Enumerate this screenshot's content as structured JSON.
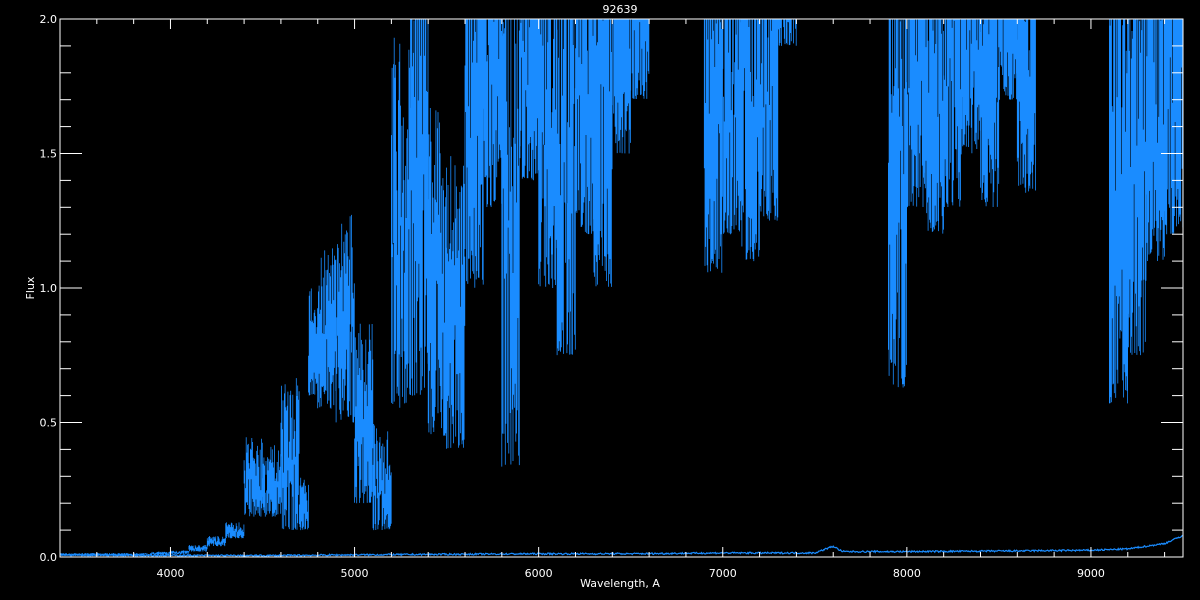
{
  "chart_data": {
    "type": "line",
    "title": "92639",
    "xlabel": "Wavelength, A",
    "ylabel": "Flux",
    "xlim": [
      3400,
      9500
    ],
    "ylim": [
      0.0,
      2.0
    ],
    "xticks": [
      4000,
      5000,
      6000,
      7000,
      8000,
      9000
    ],
    "xtick_labels": [
      "4000",
      "5000",
      "6000",
      "7000",
      "8000",
      "9000"
    ],
    "yticks": [
      0.0,
      0.5,
      1.0,
      1.5,
      2.0
    ],
    "ytick_labels": [
      "0.0",
      "0.5",
      "1.0",
      "1.5",
      "2.0"
    ],
    "grid": false,
    "colors": {
      "background": "#000000",
      "axes": "#ffffff",
      "flux": "#1a8cff",
      "error": "#1a8cff"
    },
    "series": [
      {
        "kind": "flux-envelope",
        "x_bin_start": [
          3400,
          3500,
          3600,
          3700,
          3800,
          3900,
          4000,
          4100,
          4200,
          4300,
          4400,
          4500,
          4600,
          4700,
          4750,
          4800,
          4900,
          5000,
          5100,
          5200,
          5300,
          5400,
          5500,
          5600,
          5700,
          5800,
          5900,
          6000,
          6100,
          6200,
          6300,
          6400,
          6500,
          6600,
          6700,
          6800,
          6900,
          7000,
          7100,
          7200,
          7300,
          7400,
          7500,
          7600,
          7700,
          7800,
          7900,
          8000,
          8100,
          8200,
          8300,
          8400,
          8500,
          8600,
          8700,
          8800,
          8900,
          9000,
          9100,
          9200,
          9300,
          9400
        ],
        "lower": [
          0.005,
          0.005,
          0.005,
          0.005,
          0.006,
          0.008,
          0.01,
          0.02,
          0.04,
          0.07,
          0.15,
          0.15,
          0.1,
          0.1,
          0.6,
          0.55,
          0.5,
          0.2,
          0.1,
          0.55,
          0.6,
          0.45,
          0.4,
          1.0,
          1.3,
          0.33,
          1.4,
          1.0,
          0.75,
          1.2,
          1.0,
          1.5,
          1.7,
          2.1,
          2.1,
          2.1,
          1.05,
          1.2,
          1.1,
          1.25,
          1.9,
          2.1,
          2.1,
          2.1,
          2.1,
          2.1,
          0.63,
          1.3,
          1.2,
          1.3,
          1.5,
          1.3,
          1.7,
          1.35,
          2.1,
          2.1,
          2.1,
          2.1,
          0.57,
          0.75,
          1.1,
          1.2
        ],
        "upper": [
          0.015,
          0.015,
          0.015,
          0.015,
          0.015,
          0.02,
          0.025,
          0.045,
          0.08,
          0.13,
          0.45,
          0.42,
          0.67,
          0.3,
          1.0,
          1.15,
          1.3,
          0.9,
          0.5,
          1.95,
          2.5,
          1.7,
          1.5,
          2.5,
          2.5,
          2.5,
          2.5,
          2.5,
          2.5,
          2.5,
          2.5,
          2.5,
          2.5,
          2.5,
          2.5,
          2.5,
          2.5,
          2.5,
          2.5,
          2.5,
          2.5,
          2.5,
          2.5,
          2.5,
          2.5,
          2.5,
          2.5,
          2.5,
          2.5,
          2.5,
          2.5,
          2.5,
          2.5,
          2.5,
          2.5,
          2.5,
          2.5,
          2.5,
          2.5,
          2.5,
          2.5,
          2.5
        ]
      },
      {
        "kind": "error",
        "x": [
          3400,
          4000,
          4500,
          5000,
          5500,
          6000,
          6500,
          7000,
          7500,
          7600,
          7650,
          8000,
          8500,
          9000,
          9200,
          9400,
          9500
        ],
        "y": [
          0.008,
          0.006,
          0.005,
          0.008,
          0.01,
          0.012,
          0.012,
          0.015,
          0.015,
          0.04,
          0.02,
          0.02,
          0.022,
          0.025,
          0.03,
          0.05,
          0.08
        ]
      }
    ]
  }
}
